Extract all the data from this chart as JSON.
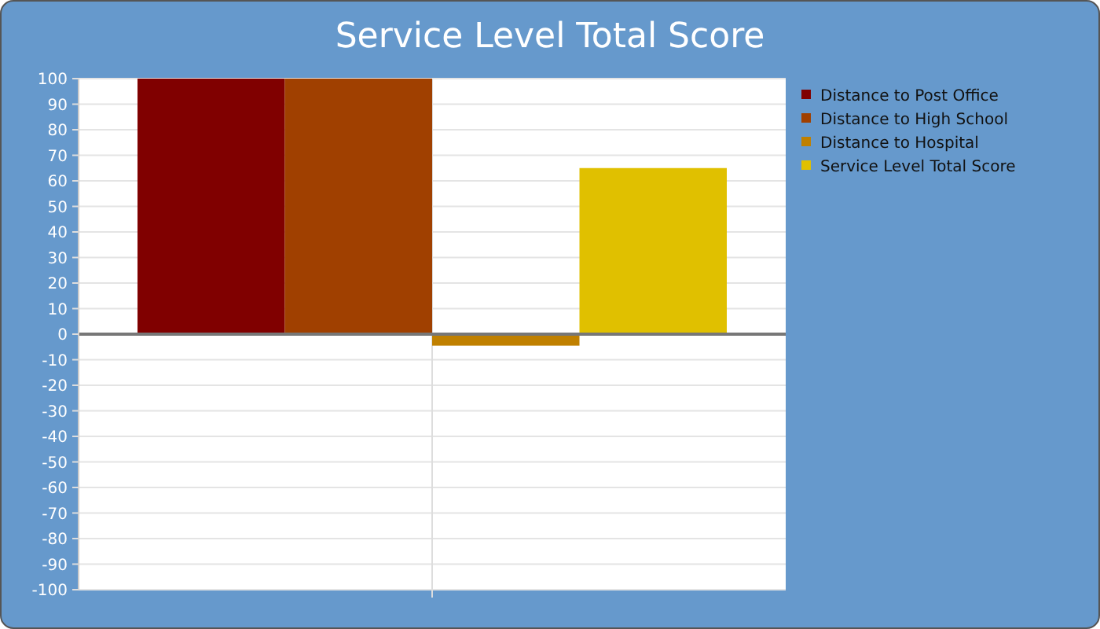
{
  "chart_data": {
    "type": "bar",
    "title": "Service Level Total Score",
    "categories": [
      null
    ],
    "series": [
      {
        "name": "Distance to Post Office",
        "color": "#800000",
        "values": [
          100
        ]
      },
      {
        "name": "Distance to High School",
        "color": "#a04000",
        "values": [
          100
        ]
      },
      {
        "name": "Distance to Hospital",
        "color": "#c08000",
        "values": [
          -4.5
        ]
      },
      {
        "name": "Service Level Total Score",
        "color": "#e0c000",
        "values": [
          65
        ]
      }
    ],
    "ylim": [
      -100,
      100
    ],
    "yticks": [
      -100,
      -90,
      -80,
      -70,
      -60,
      -50,
      -40,
      -30,
      -20,
      -10,
      0,
      10,
      20,
      30,
      40,
      50,
      60,
      70,
      80,
      90,
      100
    ],
    "grid": "y",
    "legend": "top right"
  }
}
